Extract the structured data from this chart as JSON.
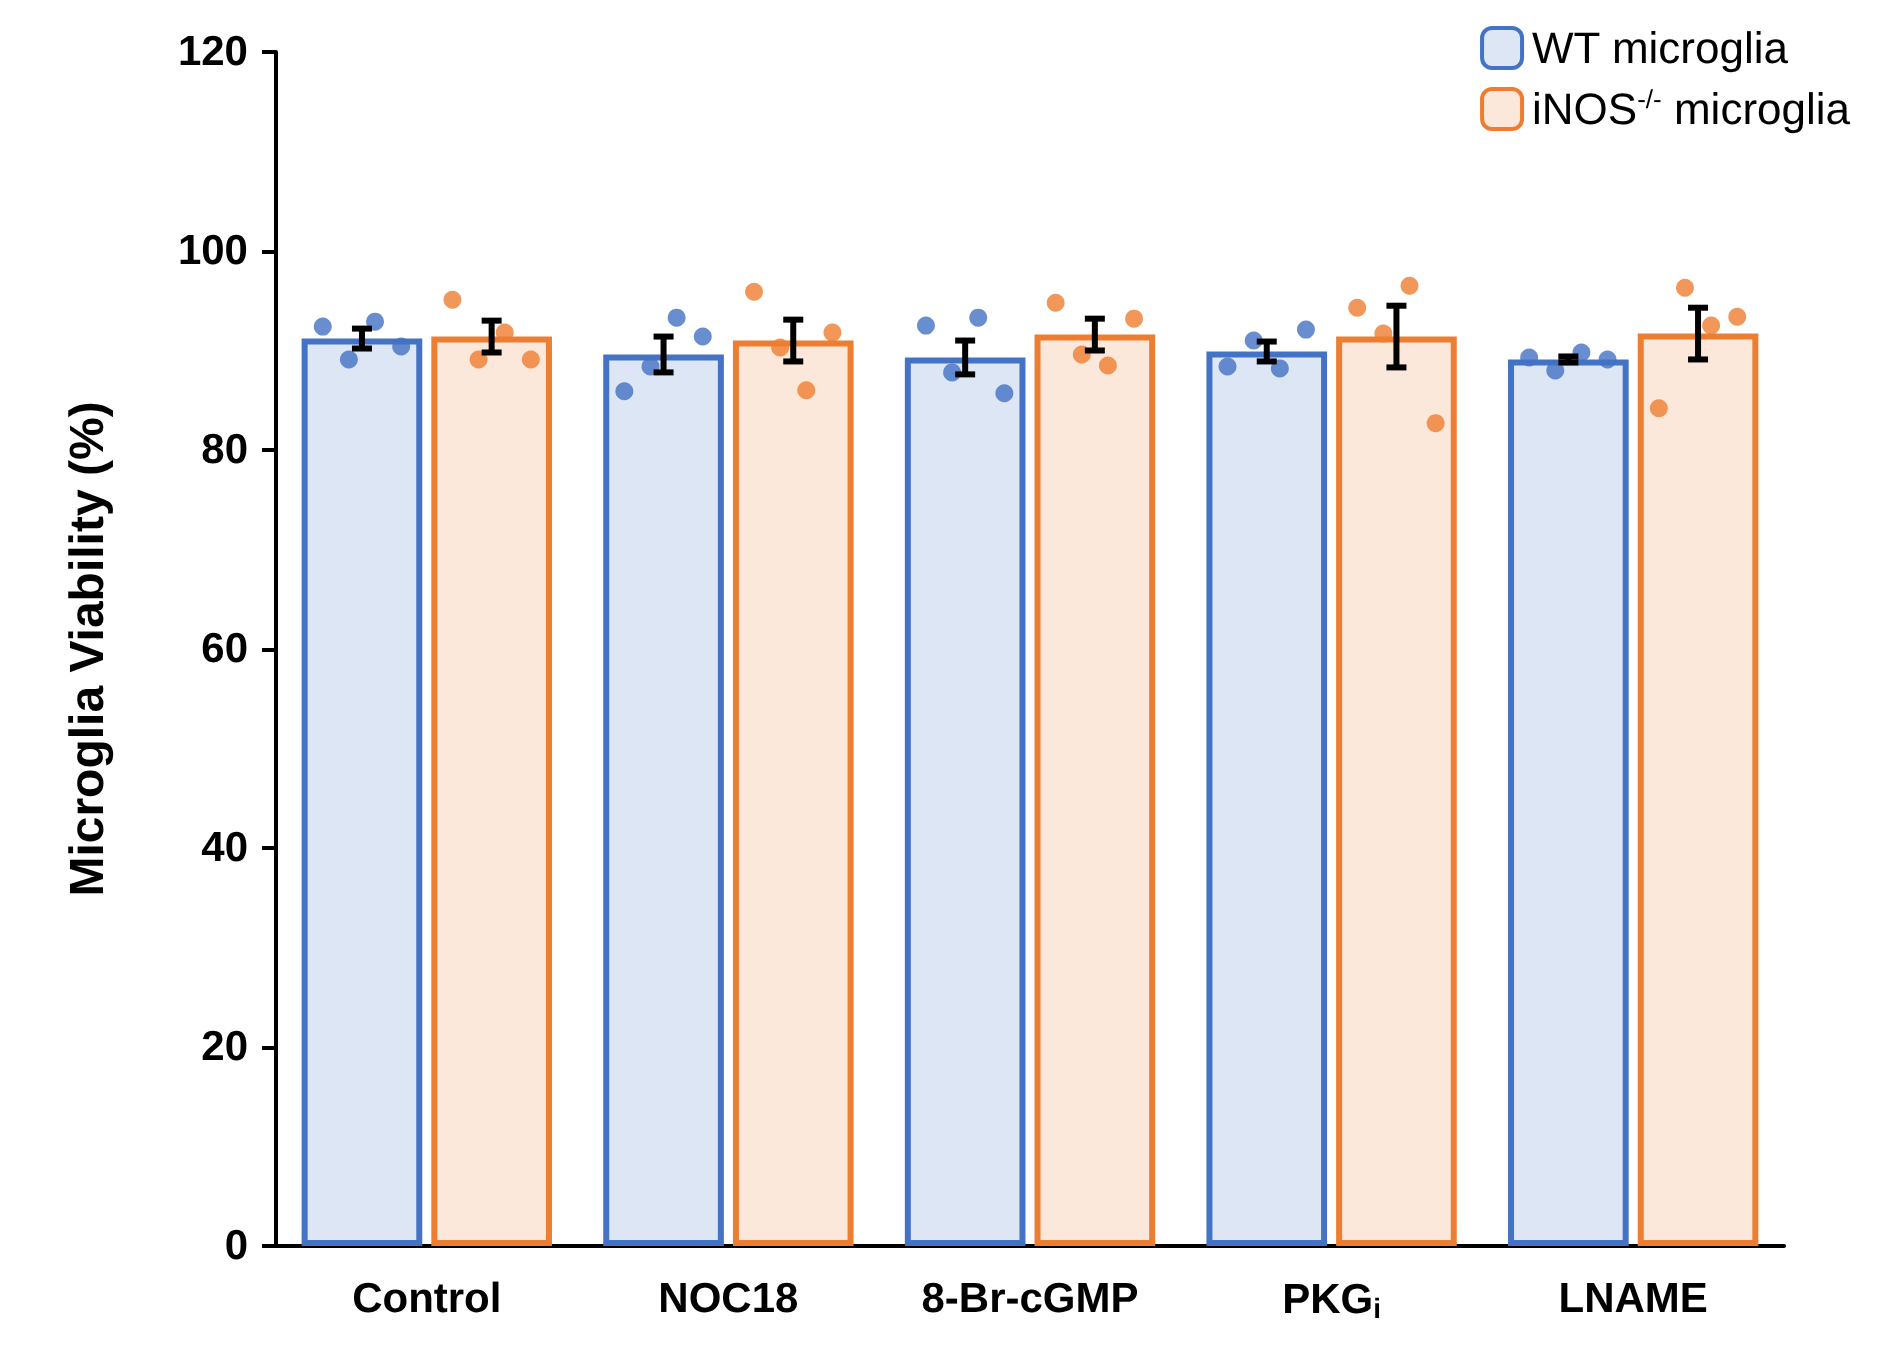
{
  "chart_data": {
    "type": "bar",
    "ylabel": "Microglia Viability (%)",
    "categories": [
      "Control",
      "NOC18",
      "8-Br-cGMP",
      "PKG$_{i}$",
      "LNAME"
    ],
    "ylim": [
      0,
      120
    ],
    "yticks": [
      0,
      20,
      40,
      60,
      80,
      100,
      120
    ],
    "grid": false,
    "legend": "top right",
    "series": [
      {
        "name": "WT microglia",
        "color": "#4472c4",
        "values": [
          91.2,
          89.6,
          89.3,
          89.9,
          89.1
        ],
        "errors": [
          1.0,
          1.8,
          1.7,
          1.0,
          0.3
        ]
      },
      {
        "name": "iNOS$^{-/-}$ microglia",
        "color": "#ed7d31",
        "values": [
          91.4,
          91.0,
          91.6,
          91.4,
          91.7
        ],
        "errors": [
          1.6,
          2.1,
          1.6,
          3.1,
          2.6
        ]
      },
      {
        "type": "scatter",
        "color": "#4472c4",
        "x": [
          "Control",
          "Control",
          "Control",
          "Control",
          "NOC18",
          "NOC18",
          "NOC18",
          "NOC18",
          "8-Br-cGMP",
          "8-Br-cGMP",
          "8-Br-cGMP",
          "8-Br-cGMP",
          "PKG$_{i}$",
          "PKG$_{i}$",
          "PKG$_{i}$",
          "PKG$_{i}$",
          "LNAME",
          "LNAME",
          "LNAME",
          "LNAME"
        ],
        "values": [
          92.4,
          89.1,
          92.9,
          90.4,
          85.9,
          88.4,
          93.3,
          91.4,
          92.5,
          87.8,
          93.3,
          85.7,
          88.4,
          91.0,
          88.2,
          92.1,
          89.3,
          88.0,
          89.8,
          89.1
        ]
      },
      {
        "type": "scatter",
        "color": "#ed7d31",
        "x": [
          "Control",
          "Control",
          "Control",
          "Control",
          "NOC18",
          "NOC18",
          "NOC18",
          "NOC18",
          "8-Br-cGMP",
          "8-Br-cGMP",
          "8-Br-cGMP",
          "8-Br-cGMP",
          "PKG$_{i}$",
          "PKG$_{i}$",
          "PKG$_{i}$",
          "PKG$_{i}$",
          "LNAME",
          "LNAME",
          "LNAME",
          "LNAME"
        ],
        "values": [
          95.1,
          89.1,
          91.8,
          89.1,
          95.9,
          90.3,
          86.0,
          91.8,
          94.8,
          89.6,
          88.5,
          93.2,
          94.3,
          91.7,
          96.5,
          82.7,
          84.2,
          96.3,
          92.5,
          93.4
        ]
      }
    ]
  }
}
